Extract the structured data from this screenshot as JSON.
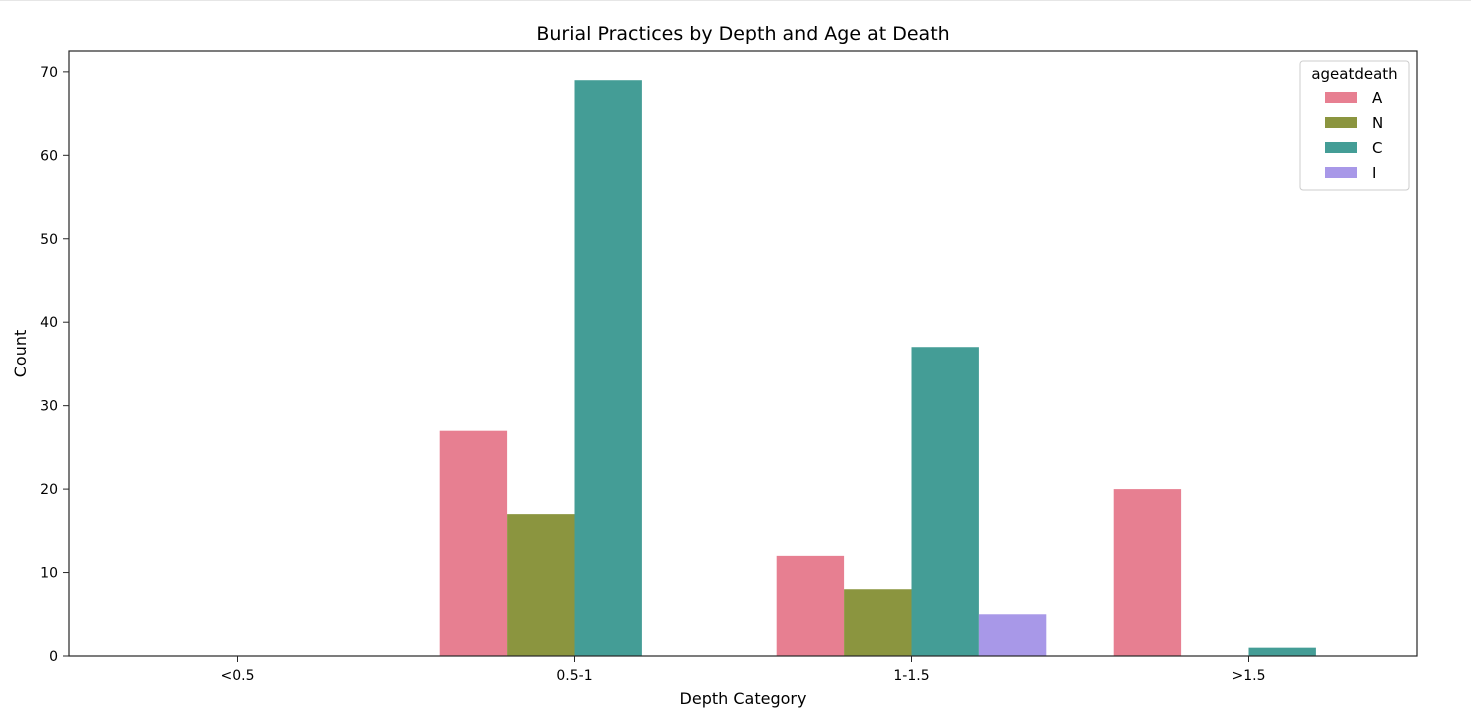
{
  "chart_data": {
    "type": "bar",
    "title": "Burial Practices by Depth and Age at Death",
    "xlabel": "Depth Category",
    "ylabel": "Count",
    "categories": [
      "<0.5",
      "0.5-1",
      "1-1.5",
      ">1.5"
    ],
    "series": [
      {
        "name": "A",
        "color": "#e77f91",
        "values": [
          0,
          27,
          12,
          20
        ]
      },
      {
        "name": "N",
        "color": "#8b953f",
        "values": [
          0,
          17,
          8,
          0
        ]
      },
      {
        "name": "C",
        "color": "#449d96",
        "values": [
          0,
          69,
          37,
          1
        ]
      },
      {
        "name": "I",
        "color": "#a898e8",
        "values": [
          0,
          0,
          5,
          0
        ]
      }
    ],
    "ylim": [
      0,
      72.5
    ],
    "yticks": [
      0,
      10,
      20,
      30,
      40,
      50,
      60,
      70
    ],
    "grid": false,
    "legend": {
      "title": "ageatdeath",
      "position": "top-right"
    }
  }
}
